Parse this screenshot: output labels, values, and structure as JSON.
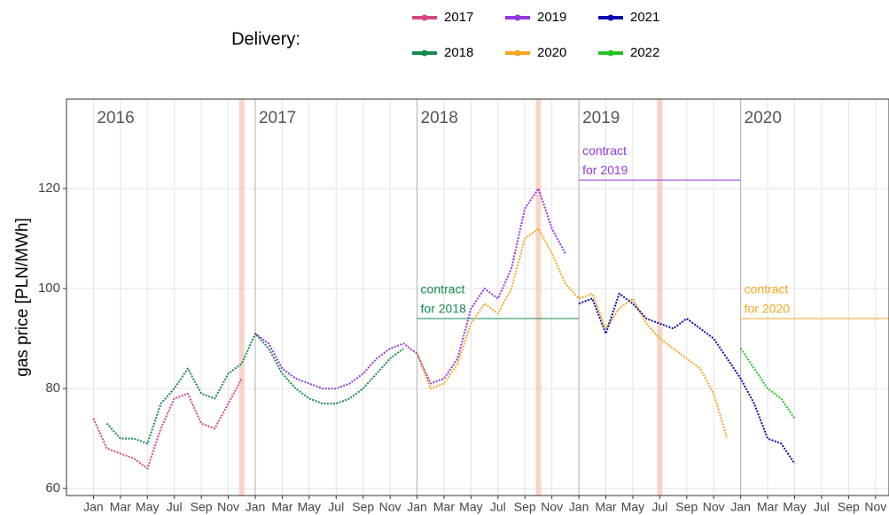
{
  "chart_data": {
    "type": "line",
    "legend_title": "Delivery:",
    "ylabel": "gas price [PLN/MWh]",
    "x": [
      "2016-01",
      "2016-02",
      "2016-03",
      "2016-04",
      "2016-05",
      "2016-06",
      "2016-07",
      "2016-08",
      "2016-09",
      "2016-10",
      "2016-11",
      "2016-12",
      "2017-01",
      "2017-02",
      "2017-03",
      "2017-04",
      "2017-05",
      "2017-06",
      "2017-07",
      "2017-08",
      "2017-09",
      "2017-10",
      "2017-11",
      "2017-12",
      "2018-01",
      "2018-02",
      "2018-03",
      "2018-04",
      "2018-05",
      "2018-06",
      "2018-07",
      "2018-08",
      "2018-09",
      "2018-10",
      "2018-11",
      "2018-12",
      "2019-01",
      "2019-02",
      "2019-03",
      "2019-04",
      "2019-05",
      "2019-06",
      "2019-07",
      "2019-08",
      "2019-09",
      "2019-10",
      "2019-11",
      "2019-12",
      "2020-01",
      "2020-02",
      "2020-03",
      "2020-04",
      "2020-05"
    ],
    "series": [
      {
        "name": "2017",
        "color": "#d6457f",
        "values": [
          74,
          68,
          67,
          66,
          64,
          72,
          78,
          79,
          73,
          72,
          77,
          82,
          null,
          null,
          null,
          null,
          null,
          null,
          null,
          null,
          null,
          null,
          null,
          null,
          null,
          null,
          null,
          null,
          null,
          null,
          null,
          null,
          null,
          null,
          null,
          null,
          null,
          null,
          null,
          null,
          null,
          null,
          null,
          null,
          null,
          null,
          null,
          null,
          null,
          null,
          null,
          null,
          null
        ]
      },
      {
        "name": "2018",
        "color": "#138a4c",
        "values": [
          null,
          73,
          70,
          70,
          69,
          77,
          80,
          84,
          79,
          78,
          83,
          85,
          91,
          88,
          83,
          80,
          78,
          77,
          77,
          78,
          80,
          83,
          86,
          88,
          null,
          null,
          null,
          null,
          null,
          null,
          null,
          null,
          null,
          null,
          null,
          null,
          null,
          null,
          null,
          null,
          null,
          null,
          null,
          null,
          null,
          null,
          null,
          null,
          null,
          null,
          null,
          null,
          null
        ]
      },
      {
        "name": "2019",
        "color": "#9437e0",
        "values": [
          null,
          null,
          null,
          null,
          null,
          null,
          null,
          null,
          null,
          null,
          null,
          null,
          91,
          89,
          84,
          82,
          81,
          80,
          80,
          81,
          83,
          86,
          88,
          89,
          87,
          81,
          82,
          86,
          96,
          100,
          98,
          104,
          116,
          120,
          112,
          107,
          null,
          null,
          null,
          null,
          null,
          null,
          null,
          null,
          null,
          null,
          null,
          null,
          null,
          null,
          null,
          null,
          null
        ]
      },
      {
        "name": "2020",
        "color": "#f5a623",
        "values": [
          null,
          null,
          null,
          null,
          null,
          null,
          null,
          null,
          null,
          null,
          null,
          null,
          null,
          null,
          null,
          null,
          null,
          null,
          null,
          null,
          null,
          null,
          null,
          null,
          87,
          80,
          81,
          85,
          93,
          97,
          95,
          100,
          110,
          112,
          107,
          101,
          98,
          99,
          92,
          96,
          98,
          93,
          90,
          88,
          86,
          84,
          79,
          70,
          null,
          null,
          null,
          null,
          null
        ]
      },
      {
        "name": "2021",
        "color": "#0a0ab0",
        "values": [
          null,
          null,
          null,
          null,
          null,
          null,
          null,
          null,
          null,
          null,
          null,
          null,
          null,
          null,
          null,
          null,
          null,
          null,
          null,
          null,
          null,
          null,
          null,
          null,
          null,
          null,
          null,
          null,
          null,
          null,
          null,
          null,
          null,
          null,
          null,
          null,
          97,
          98,
          91,
          99,
          97,
          94,
          93,
          92,
          94,
          92,
          90,
          86,
          82,
          77,
          70,
          69,
          65
        ]
      },
      {
        "name": "2022",
        "color": "#22c422",
        "values": [
          null,
          null,
          null,
          null,
          null,
          null,
          null,
          null,
          null,
          null,
          null,
          null,
          null,
          null,
          null,
          null,
          null,
          null,
          null,
          null,
          null,
          null,
          null,
          null,
          null,
          null,
          null,
          null,
          null,
          null,
          null,
          null,
          null,
          null,
          null,
          null,
          null,
          null,
          null,
          null,
          null,
          null,
          null,
          null,
          null,
          null,
          null,
          null,
          88,
          84,
          80,
          78,
          74
        ]
      }
    ],
    "xlim": [
      "2015-11",
      "2020-12"
    ],
    "xticks": [
      {
        "value": "2016-01",
        "label": "Jan"
      },
      {
        "value": "2016-03",
        "label": "Mar"
      },
      {
        "value": "2016-05",
        "label": "May"
      },
      {
        "value": "2016-07",
        "label": "Jul"
      },
      {
        "value": "2016-09",
        "label": "Sep"
      },
      {
        "value": "2016-11",
        "label": "Nov"
      },
      {
        "value": "2017-01",
        "label": "Jan"
      },
      {
        "value": "2017-03",
        "label": "Mar"
      },
      {
        "value": "2017-05",
        "label": "May"
      },
      {
        "value": "2017-07",
        "label": "Jul"
      },
      {
        "value": "2017-09",
        "label": "Sep"
      },
      {
        "value": "2017-11",
        "label": "Nov"
      },
      {
        "value": "2018-01",
        "label": "Jan"
      },
      {
        "value": "2018-03",
        "label": "Mar"
      },
      {
        "value": "2018-05",
        "label": "May"
      },
      {
        "value": "2018-07",
        "label": "Jul"
      },
      {
        "value": "2018-09",
        "label": "Sep"
      },
      {
        "value": "2018-11",
        "label": "Nov"
      },
      {
        "value": "2019-01",
        "label": "Jan"
      },
      {
        "value": "2019-03",
        "label": "Mar"
      },
      {
        "value": "2019-05",
        "label": "May"
      },
      {
        "value": "2019-07",
        "label": "Jul"
      },
      {
        "value": "2019-09",
        "label": "Sep"
      },
      {
        "value": "2019-11",
        "label": "Nov"
      },
      {
        "value": "2020-01",
        "label": "Jan"
      },
      {
        "value": "2020-03",
        "label": "Mar"
      },
      {
        "value": "2020-05",
        "label": "May"
      },
      {
        "value": "2020-07",
        "label": "Jul"
      },
      {
        "value": "2020-09",
        "label": "Sep"
      },
      {
        "value": "2020-11",
        "label": "Nov"
      }
    ],
    "ylim": [
      58.6,
      137.9
    ],
    "yticks": [
      60,
      80,
      100,
      120
    ],
    "grid": true,
    "panels": [
      {
        "label": "2016",
        "x": "2016-01"
      },
      {
        "label": "2017",
        "x": "2017-01"
      },
      {
        "label": "2018",
        "x": "2018-01"
      },
      {
        "label": "2019",
        "x": "2019-01"
      },
      {
        "label": "2020",
        "x": "2020-01"
      }
    ],
    "highlights": [
      "2016-12",
      "2018-10",
      "2019-07"
    ],
    "annotations": [
      {
        "lines": [
          "contract",
          "for 2018"
        ],
        "color": "#138a4c",
        "value": 94,
        "x": [
          "2018-01",
          "2019-01"
        ]
      },
      {
        "lines": [
          "contract",
          "for 2019"
        ],
        "color": "#9437e0",
        "value": 121.7,
        "x": [
          "2019-01",
          "2020-01"
        ]
      },
      {
        "lines": [
          "contract",
          "for 2020"
        ],
        "color": "#f5a623",
        "value": 94,
        "x": [
          "2020-01",
          "2020-12"
        ]
      }
    ]
  }
}
